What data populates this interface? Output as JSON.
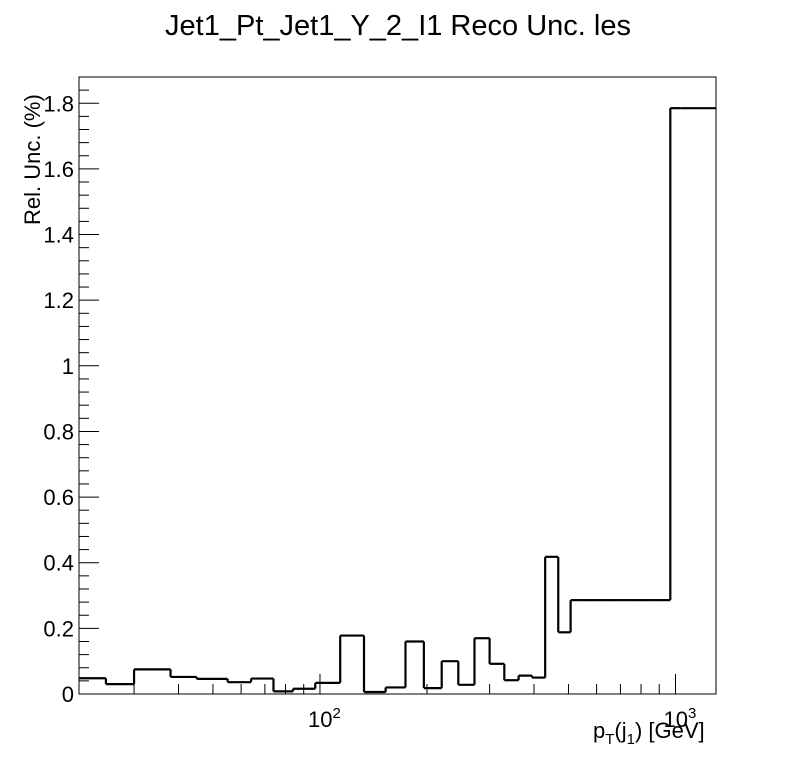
{
  "chart_data": {
    "type": "histogram-step",
    "title": "Jet1_Pt_Jet1_Y_2_I1 Reco Unc. les",
    "xlabel_main": "p",
    "xlabel_sub1": "T",
    "xlabel_mid": "(j",
    "xlabel_sub2": "1",
    "xlabel_end": ") [GeV]",
    "ylabel": "Rel. Unc. (%)",
    "x_scale": "log",
    "xlim": [
      21,
      1300
    ],
    "ylim": [
      0,
      1.88
    ],
    "y_ticks": [
      0,
      0.2,
      0.4,
      0.6,
      0.8,
      1,
      1.2,
      1.4,
      1.6,
      1.8
    ],
    "y_tick_labels": [
      "0",
      "0.2",
      "0.4",
      "0.6",
      "0.8",
      "1",
      "1.2",
      "1.4",
      "1.6",
      "1.8"
    ],
    "x_tick_labels": [
      {
        "value": 100,
        "base": "10",
        "exp": "2"
      },
      {
        "value": 1000,
        "base": "10",
        "exp": "3"
      }
    ],
    "bin_edges": [
      21,
      25,
      30,
      38,
      45,
      55,
      64,
      74,
      84,
      97,
      114,
      133,
      153,
      174,
      196,
      220,
      245,
      272,
      300,
      330,
      362,
      395,
      430,
      468,
      507,
      548,
      592,
      638,
      686,
      737,
      790,
      846,
      905,
      967,
      1032,
      1300
    ],
    "values": [
      0.048,
      0.03,
      0.075,
      0.052,
      0.046,
      0.036,
      0.047,
      0.008,
      0.016,
      0.034,
      0.178,
      0.006,
      0.02,
      0.16,
      0.018,
      0.1,
      0.028,
      0.17,
      0.092,
      0.042,
      0.056,
      0.05,
      0.418,
      0.188,
      0.286,
      0.286,
      0.286,
      0.286,
      0.286,
      0.286,
      0.286,
      0.286,
      0.286,
      1.785,
      1.785
    ],
    "line_color": "#000000",
    "grid": false,
    "legend": "none"
  }
}
